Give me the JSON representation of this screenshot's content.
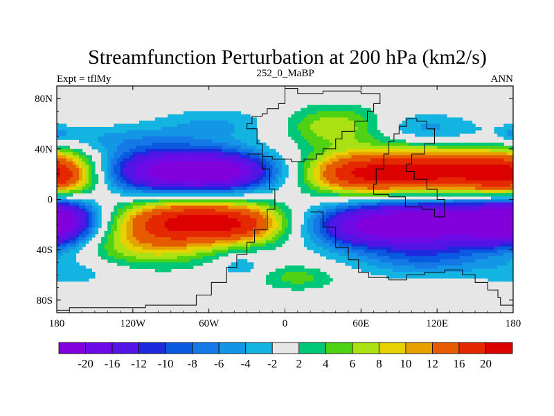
{
  "chart_data": {
    "type": "heatmap",
    "title": "Streamfunction Perturbation at 200 hPa (km2/s)",
    "left_label": "Expt = tflMy",
    "center_label": "252_0_MaBP",
    "right_label": "ANN",
    "x_ticks": [
      {
        "value": -180,
        "label": "180"
      },
      {
        "value": -120,
        "label": "120W"
      },
      {
        "value": -60,
        "label": "60W"
      },
      {
        "value": 0,
        "label": "0"
      },
      {
        "value": 60,
        "label": "60E"
      },
      {
        "value": 120,
        "label": "120E"
      },
      {
        "value": 180,
        "label": "180"
      }
    ],
    "y_ticks": [
      {
        "value": 80,
        "label": "80N"
      },
      {
        "value": 40,
        "label": "40N"
      },
      {
        "value": 0,
        "label": "0"
      },
      {
        "value": -40,
        "label": "40S"
      },
      {
        "value": -80,
        "label": "80S"
      }
    ],
    "xlim": [
      -180,
      180
    ],
    "ylim": [
      -90,
      90
    ],
    "levels": [
      "-20",
      "-16",
      "-12",
      "-10",
      "-8",
      "-6",
      "-4",
      "-2",
      "2",
      "4",
      "6",
      "8",
      "10",
      "12",
      "16",
      "20"
    ],
    "level_colors": [
      "#8200DC",
      "#6E0AE6",
      "#5514E6",
      "#1E28DC",
      "#0A5AE1",
      "#1478E6",
      "#1496E6",
      "#14B4E1",
      "#E6E6E6",
      "#00C878",
      "#50D214",
      "#AAE114",
      "#E6D200",
      "#E6A000",
      "#E65A00",
      "#E62800",
      "#DC0000"
    ],
    "fields": [
      {
        "lon": -90,
        "lat": 22,
        "slon": 40,
        "slat": 13,
        "amp": -22
      },
      {
        "lon": -40,
        "lat": 22,
        "slon": 28,
        "slat": 11,
        "amp": -12
      },
      {
        "lon": -180,
        "lat": 18,
        "slon": 24,
        "slat": 14,
        "amp": 16
      },
      {
        "lon": -80,
        "lat": -17,
        "slon": 40,
        "slat": 13,
        "amp": 20
      },
      {
        "lon": -30,
        "lat": -20,
        "slon": 25,
        "slat": 11,
        "amp": 10
      },
      {
        "lon": -110,
        "lat": -38,
        "slon": 38,
        "slat": 12,
        "amp": 7
      },
      {
        "lon": -180,
        "lat": -16,
        "slon": 22,
        "slat": 14,
        "amp": -18
      },
      {
        "lon": 110,
        "lat": 21,
        "slon": 50,
        "slat": 14,
        "amp": 22
      },
      {
        "lon": 50,
        "lat": 20,
        "slon": 25,
        "slat": 11,
        "amp": 9
      },
      {
        "lon": 120,
        "lat": -18,
        "slon": 50,
        "slat": 14,
        "amp": -24
      },
      {
        "lon": 60,
        "lat": -22,
        "slon": 30,
        "slat": 12,
        "amp": -10
      },
      {
        "lon": 110,
        "lat": -48,
        "slon": 38,
        "slat": 10,
        "amp": -6
      },
      {
        "lon": 40,
        "lat": 58,
        "slon": 28,
        "slat": 11,
        "amp": 8
      },
      {
        "lon": 108,
        "lat": 56,
        "slon": 30,
        "slat": 9,
        "amp": -5
      },
      {
        "lon": -145,
        "lat": 48,
        "slon": 55,
        "slat": 8,
        "amp": -4
      },
      {
        "lon": -55,
        "lat": 60,
        "slon": 35,
        "slat": 9,
        "amp": -4
      },
      {
        "lon": 10,
        "lat": -62,
        "slon": 22,
        "slat": 7,
        "amp": 5
      },
      {
        "lon": -35,
        "lat": -52,
        "slon": 14,
        "slat": 8,
        "amp": -4
      },
      {
        "lon": -165,
        "lat": -58,
        "slon": 30,
        "slat": 8,
        "amp": -3
      },
      {
        "lon": 180,
        "lat": 52,
        "slon": 8,
        "slat": 5,
        "amp": -3
      }
    ],
    "land_outline": [
      [
        0,
        88
      ],
      [
        10,
        88
      ],
      [
        10,
        84
      ],
      [
        30,
        84
      ],
      [
        30,
        86
      ],
      [
        45,
        86
      ],
      [
        60,
        84
      ],
      [
        75,
        82
      ],
      [
        75,
        76
      ],
      [
        70,
        70
      ],
      [
        65,
        62
      ],
      [
        55,
        54
      ],
      [
        45,
        48
      ],
      [
        40,
        40
      ],
      [
        30,
        36
      ],
      [
        25,
        32
      ],
      [
        15,
        30
      ],
      [
        5,
        32
      ],
      [
        -10,
        34
      ],
      [
        -18,
        44
      ],
      [
        -22,
        56
      ],
      [
        -30,
        60
      ],
      [
        -26,
        66
      ],
      [
        -18,
        68
      ],
      [
        -14,
        72
      ],
      [
        -5,
        76
      ],
      [
        0,
        80
      ],
      [
        0,
        88
      ]
    ],
    "land_outline_2": [
      [
        -30,
        36
      ],
      [
        -18,
        24
      ],
      [
        -12,
        8
      ],
      [
        -8,
        -8
      ],
      [
        -14,
        -24
      ],
      [
        -24,
        -34
      ],
      [
        -30,
        -44
      ],
      [
        -38,
        -54
      ],
      [
        -46,
        -66
      ],
      [
        -58,
        -76
      ],
      [
        -70,
        -84
      ],
      [
        -110,
        -86
      ],
      [
        -170,
        -88
      ],
      [
        -180,
        -88
      ]
    ],
    "land_outline_3": [
      [
        20,
        -10
      ],
      [
        30,
        -22
      ],
      [
        40,
        -38
      ],
      [
        50,
        -48
      ],
      [
        58,
        -58
      ],
      [
        66,
        -62
      ],
      [
        82,
        -64
      ],
      [
        96,
        -60
      ],
      [
        110,
        -58
      ],
      [
        126,
        -56
      ],
      [
        140,
        -60
      ],
      [
        150,
        -66
      ],
      [
        160,
        -72
      ],
      [
        168,
        -78
      ],
      [
        170,
        -84
      ],
      [
        180,
        -84
      ]
    ],
    "land_outline_4": [
      [
        70,
        4
      ],
      [
        82,
        2
      ],
      [
        95,
        -6
      ],
      [
        108,
        -8
      ],
      [
        118,
        -14
      ],
      [
        126,
        -12
      ],
      [
        126,
        0
      ],
      [
        120,
        8
      ],
      [
        112,
        16
      ],
      [
        102,
        22
      ],
      [
        96,
        28
      ],
      [
        100,
        36
      ],
      [
        110,
        44
      ],
      [
        118,
        50
      ],
      [
        118,
        56
      ],
      [
        112,
        62
      ],
      [
        104,
        64
      ],
      [
        96,
        58
      ],
      [
        90,
        52
      ],
      [
        86,
        46
      ],
      [
        82,
        36
      ],
      [
        78,
        24
      ],
      [
        72,
        12
      ],
      [
        70,
        4
      ]
    ]
  }
}
